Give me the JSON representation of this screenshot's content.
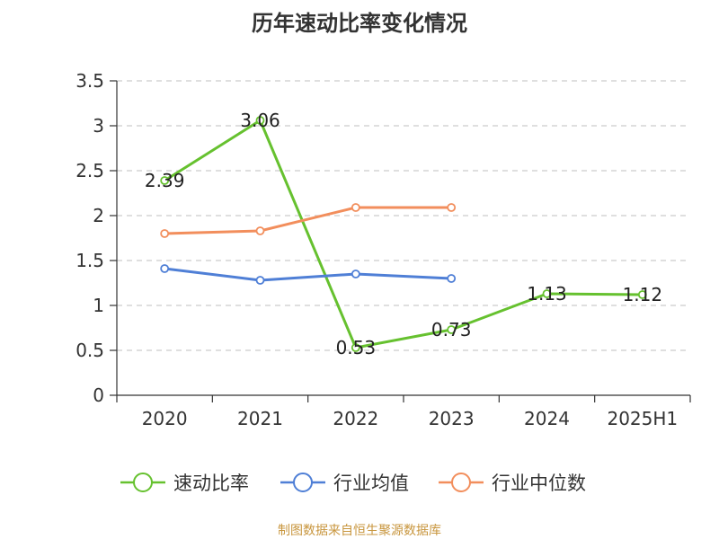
{
  "chart_data": {
    "type": "line",
    "title": "历年速动比率变化情况",
    "categories": [
      "2020",
      "2021",
      "2022",
      "2023",
      "2024",
      "2025H1"
    ],
    "ylim": [
      0,
      3.5
    ],
    "yticks": [
      "0",
      "0.5",
      "1",
      "1.5",
      "2",
      "2.5",
      "3",
      "3.5"
    ],
    "grid": true,
    "legend_position": "bottom",
    "series": [
      {
        "name": "速动比率",
        "color": "#66c12f",
        "values": [
          2.39,
          3.06,
          0.53,
          0.73,
          1.13,
          1.12
        ],
        "labels": [
          "2.39",
          "3.06",
          "0.53",
          "0.73",
          "1.13",
          "1.12"
        ]
      },
      {
        "name": "行业均值",
        "color": "#4f7fd6",
        "values": [
          1.41,
          1.28,
          1.35,
          1.3,
          null,
          null
        ]
      },
      {
        "name": "行业中位数",
        "color": "#f28e5c",
        "values": [
          1.8,
          1.83,
          2.09,
          2.09,
          null,
          null
        ]
      }
    ]
  },
  "source": "制图数据来自恒生聚源数据库"
}
